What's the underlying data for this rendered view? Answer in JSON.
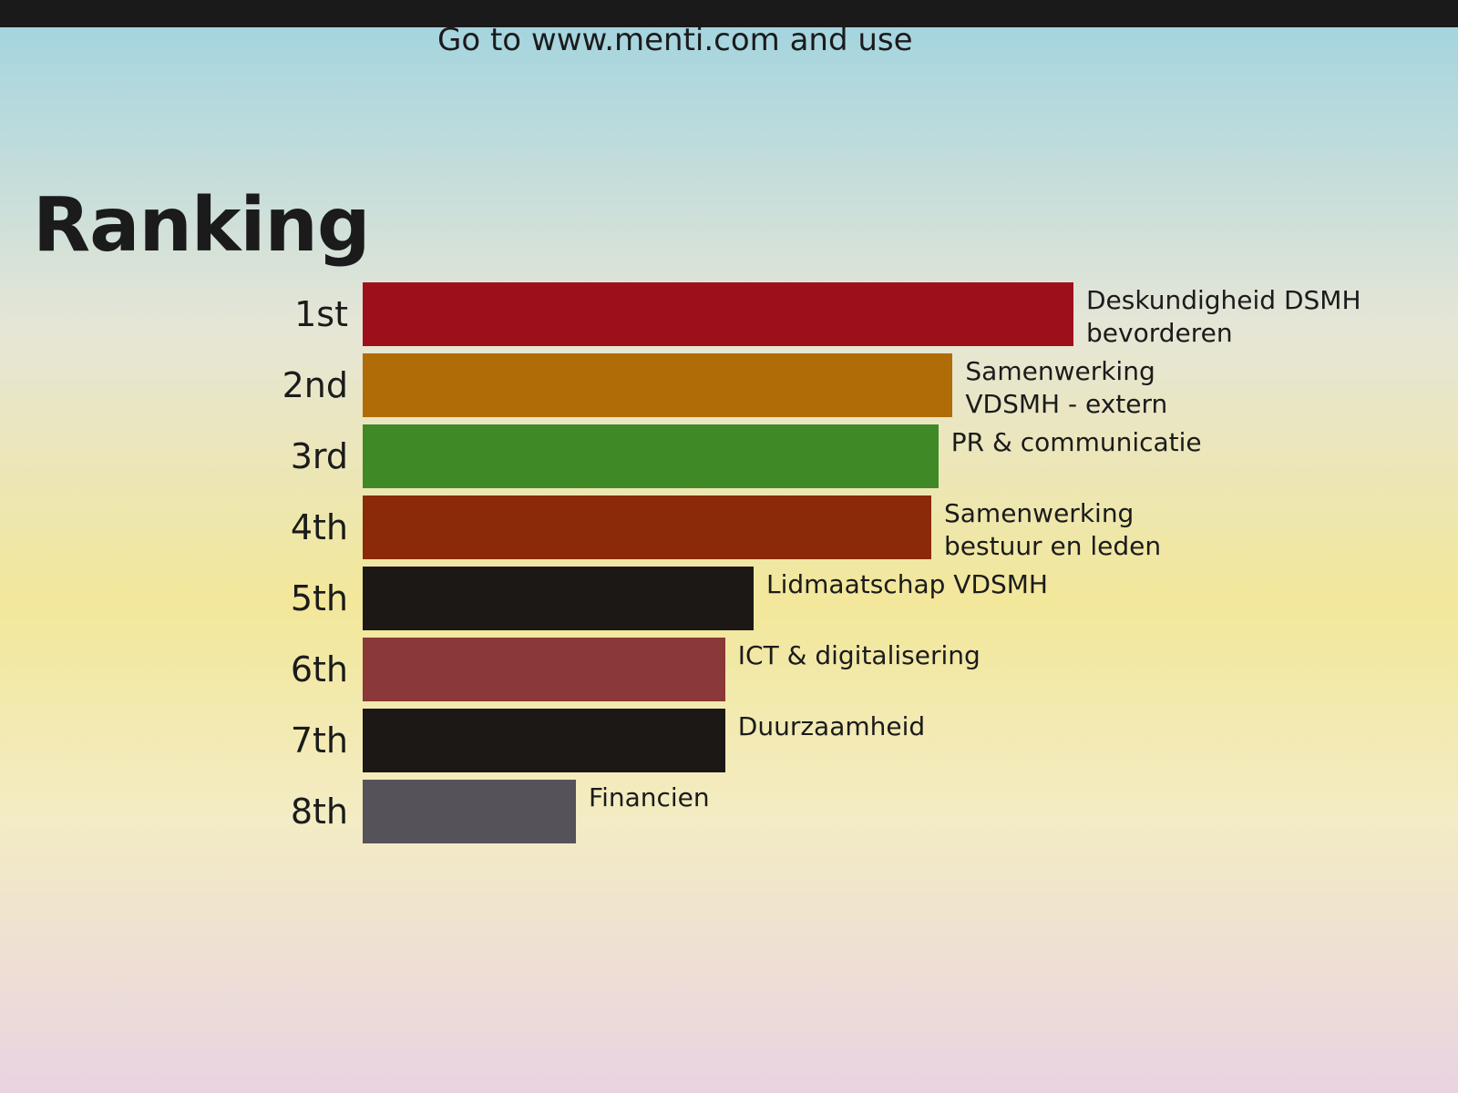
{
  "chart_data": {
    "type": "bar",
    "orientation": "horizontal",
    "title": "Ranking",
    "subtitle": "Go to www.menti.com and use",
    "ranks": [
      "1st",
      "2nd",
      "3rd",
      "4th",
      "5th",
      "6th",
      "7th",
      "8th"
    ],
    "categories": [
      "Deskundigheid DSMH bevorderen",
      "Samenwerking VDSMH - extern",
      "PR & communicatie",
      "Samenwerking bestuur en leden",
      "Lidmaatschap VDSMH",
      "ICT & digitalisering",
      "Duurzaamheid",
      "Financien"
    ],
    "values": [
      100,
      83,
      81,
      80,
      55,
      51,
      51,
      30
    ],
    "colors": [
      "#9e0f1c",
      "#b06c06",
      "#3f8a26",
      "#8a2a08",
      "#1c1816",
      "#8a3838",
      "#1c1816",
      "#56525a"
    ]
  }
}
